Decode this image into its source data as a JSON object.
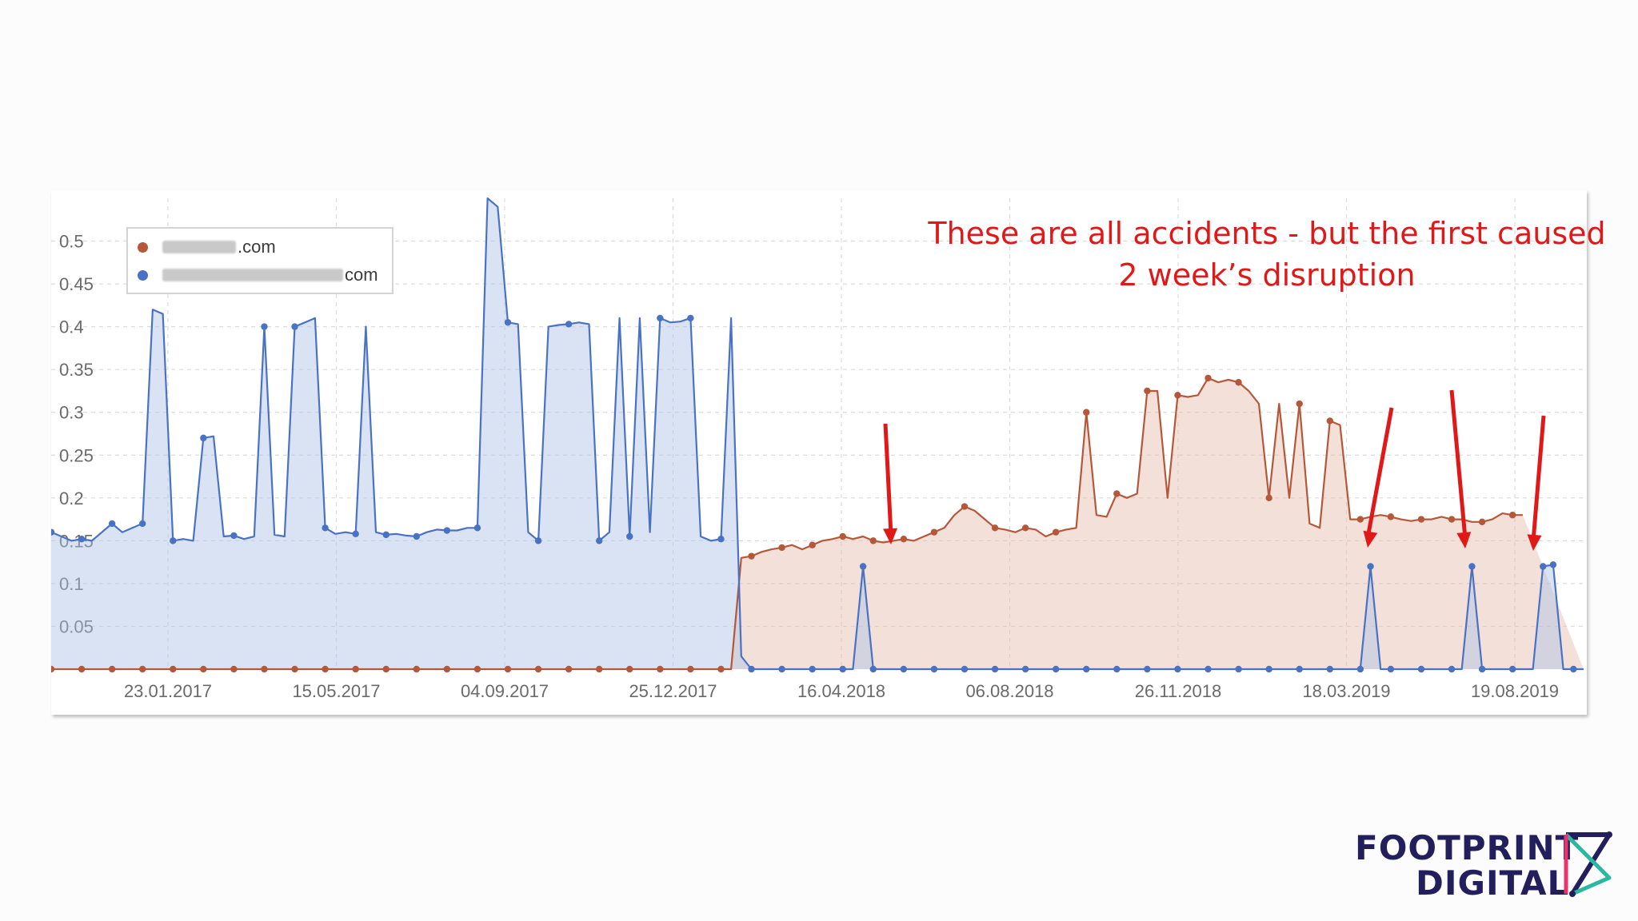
{
  "annotation": {
    "line1": "These are all accidents - but the first caused",
    "line2": "2 week’s disruption"
  },
  "legend": [
    {
      "label": ".com",
      "color": "#b5583a"
    },
    {
      "label": "com",
      "color": "#4a72c4"
    }
  ],
  "logo": {
    "line1": "FOOTPRINT",
    "line2": "DIGITAL",
    "colors": [
      "#231f5c",
      "#e8336d",
      "#2bb8a0"
    ]
  },
  "chart_data": {
    "type": "area",
    "ylim": [
      0,
      0.55
    ],
    "yticks": [
      "0.05",
      "0.1",
      "0.15",
      "0.2",
      "0.25",
      "0.3",
      "0.35",
      "0.4",
      "0.45",
      "0.5"
    ],
    "xticks": [
      "23.01.2017",
      "15.05.2017",
      "04.09.2017",
      "25.12.2017",
      "16.04.2018",
      "06.08.2018",
      "26.11.2018",
      "18.03.2019",
      "19.08.2019"
    ],
    "series": [
      {
        "color": "#4a72c4",
        "fill": "rgba(174,192,230,0.45)",
        "values": [
          0.16,
          0.155,
          0.15,
          0.152,
          0.15,
          0.16,
          0.17,
          0.16,
          0.165,
          0.17,
          0.42,
          0.415,
          0.15,
          0.152,
          0.15,
          0.27,
          0.272,
          0.155,
          0.156,
          0.152,
          0.155,
          0.4,
          0.157,
          0.155,
          0.4,
          0.405,
          0.41,
          0.165,
          0.158,
          0.16,
          0.158,
          0.4,
          0.16,
          0.157,
          0.158,
          0.156,
          0.155,
          0.16,
          0.163,
          0.162,
          0.162,
          0.165,
          0.165,
          0.55,
          0.54,
          0.405,
          0.403,
          0.16,
          0.15,
          0.4,
          0.402,
          0.403,
          0.405,
          0.403,
          0.15,
          0.16,
          0.41,
          0.155,
          0.41,
          0.16,
          0.41,
          0.405,
          0.406,
          0.41,
          0.155,
          0.15,
          0.152,
          0.41,
          0.015,
          0,
          0,
          0,
          0,
          0,
          0,
          0,
          0,
          0,
          0,
          0,
          0.12,
          0,
          0,
          0,
          0,
          0,
          0,
          0,
          0,
          0,
          0,
          0,
          0,
          0,
          0,
          0,
          0,
          0,
          0,
          0,
          0,
          0,
          0,
          0,
          0,
          0,
          0,
          0,
          0,
          0,
          0,
          0,
          0,
          0,
          0,
          0,
          0,
          0,
          0,
          0,
          0,
          0,
          0,
          0,
          0,
          0,
          0,
          0,
          0,
          0,
          0.12,
          0,
          0,
          0,
          0,
          0,
          0,
          0,
          0,
          0,
          0.12,
          0,
          0,
          0,
          0,
          0,
          0,
          0.12,
          0.122,
          0,
          0,
          0
        ]
      },
      {
        "color": "#b5583a",
        "fill": "rgba(228,186,170,0.45)",
        "values": [
          0,
          0,
          0,
          0,
          0,
          0,
          0,
          0,
          0,
          0,
          0,
          0,
          0,
          0,
          0,
          0,
          0,
          0,
          0,
          0,
          0,
          0,
          0,
          0,
          0,
          0,
          0,
          0,
          0,
          0,
          0,
          0,
          0,
          0,
          0,
          0,
          0,
          0,
          0,
          0,
          0,
          0,
          0,
          0,
          0,
          0,
          0,
          0,
          0,
          0,
          0,
          0,
          0,
          0,
          0,
          0,
          0,
          0,
          0,
          0,
          0,
          0,
          0,
          0,
          0,
          0,
          0,
          0,
          0.13,
          0.132,
          0.137,
          0.14,
          0.142,
          0.145,
          0.14,
          0.145,
          0.15,
          0.152,
          0.155,
          0.152,
          0.155,
          0.15,
          0.148,
          0.15,
          0.152,
          0.15,
          0.155,
          0.16,
          0.165,
          0.18,
          0.19,
          0.185,
          0.175,
          0.165,
          0.163,
          0.16,
          0.165,
          0.163,
          0.155,
          0.16,
          0.163,
          0.165,
          0.3,
          0.18,
          0.178,
          0.205,
          0.2,
          0.205,
          0.325,
          0.325,
          0.2,
          0.32,
          0.318,
          0.32,
          0.34,
          0.335,
          0.338,
          0.335,
          0.325,
          0.31,
          0.2,
          0.31,
          0.2,
          0.31,
          0.17,
          0.165,
          0.29,
          0.285,
          0.175,
          0.175,
          0.178,
          0.18,
          0.178,
          0.175,
          0.173,
          0.175,
          0.175,
          0.178,
          0.175,
          0.175,
          0.172,
          0.172,
          0.175,
          0.182,
          0.18,
          0.18
        ]
      }
    ]
  }
}
